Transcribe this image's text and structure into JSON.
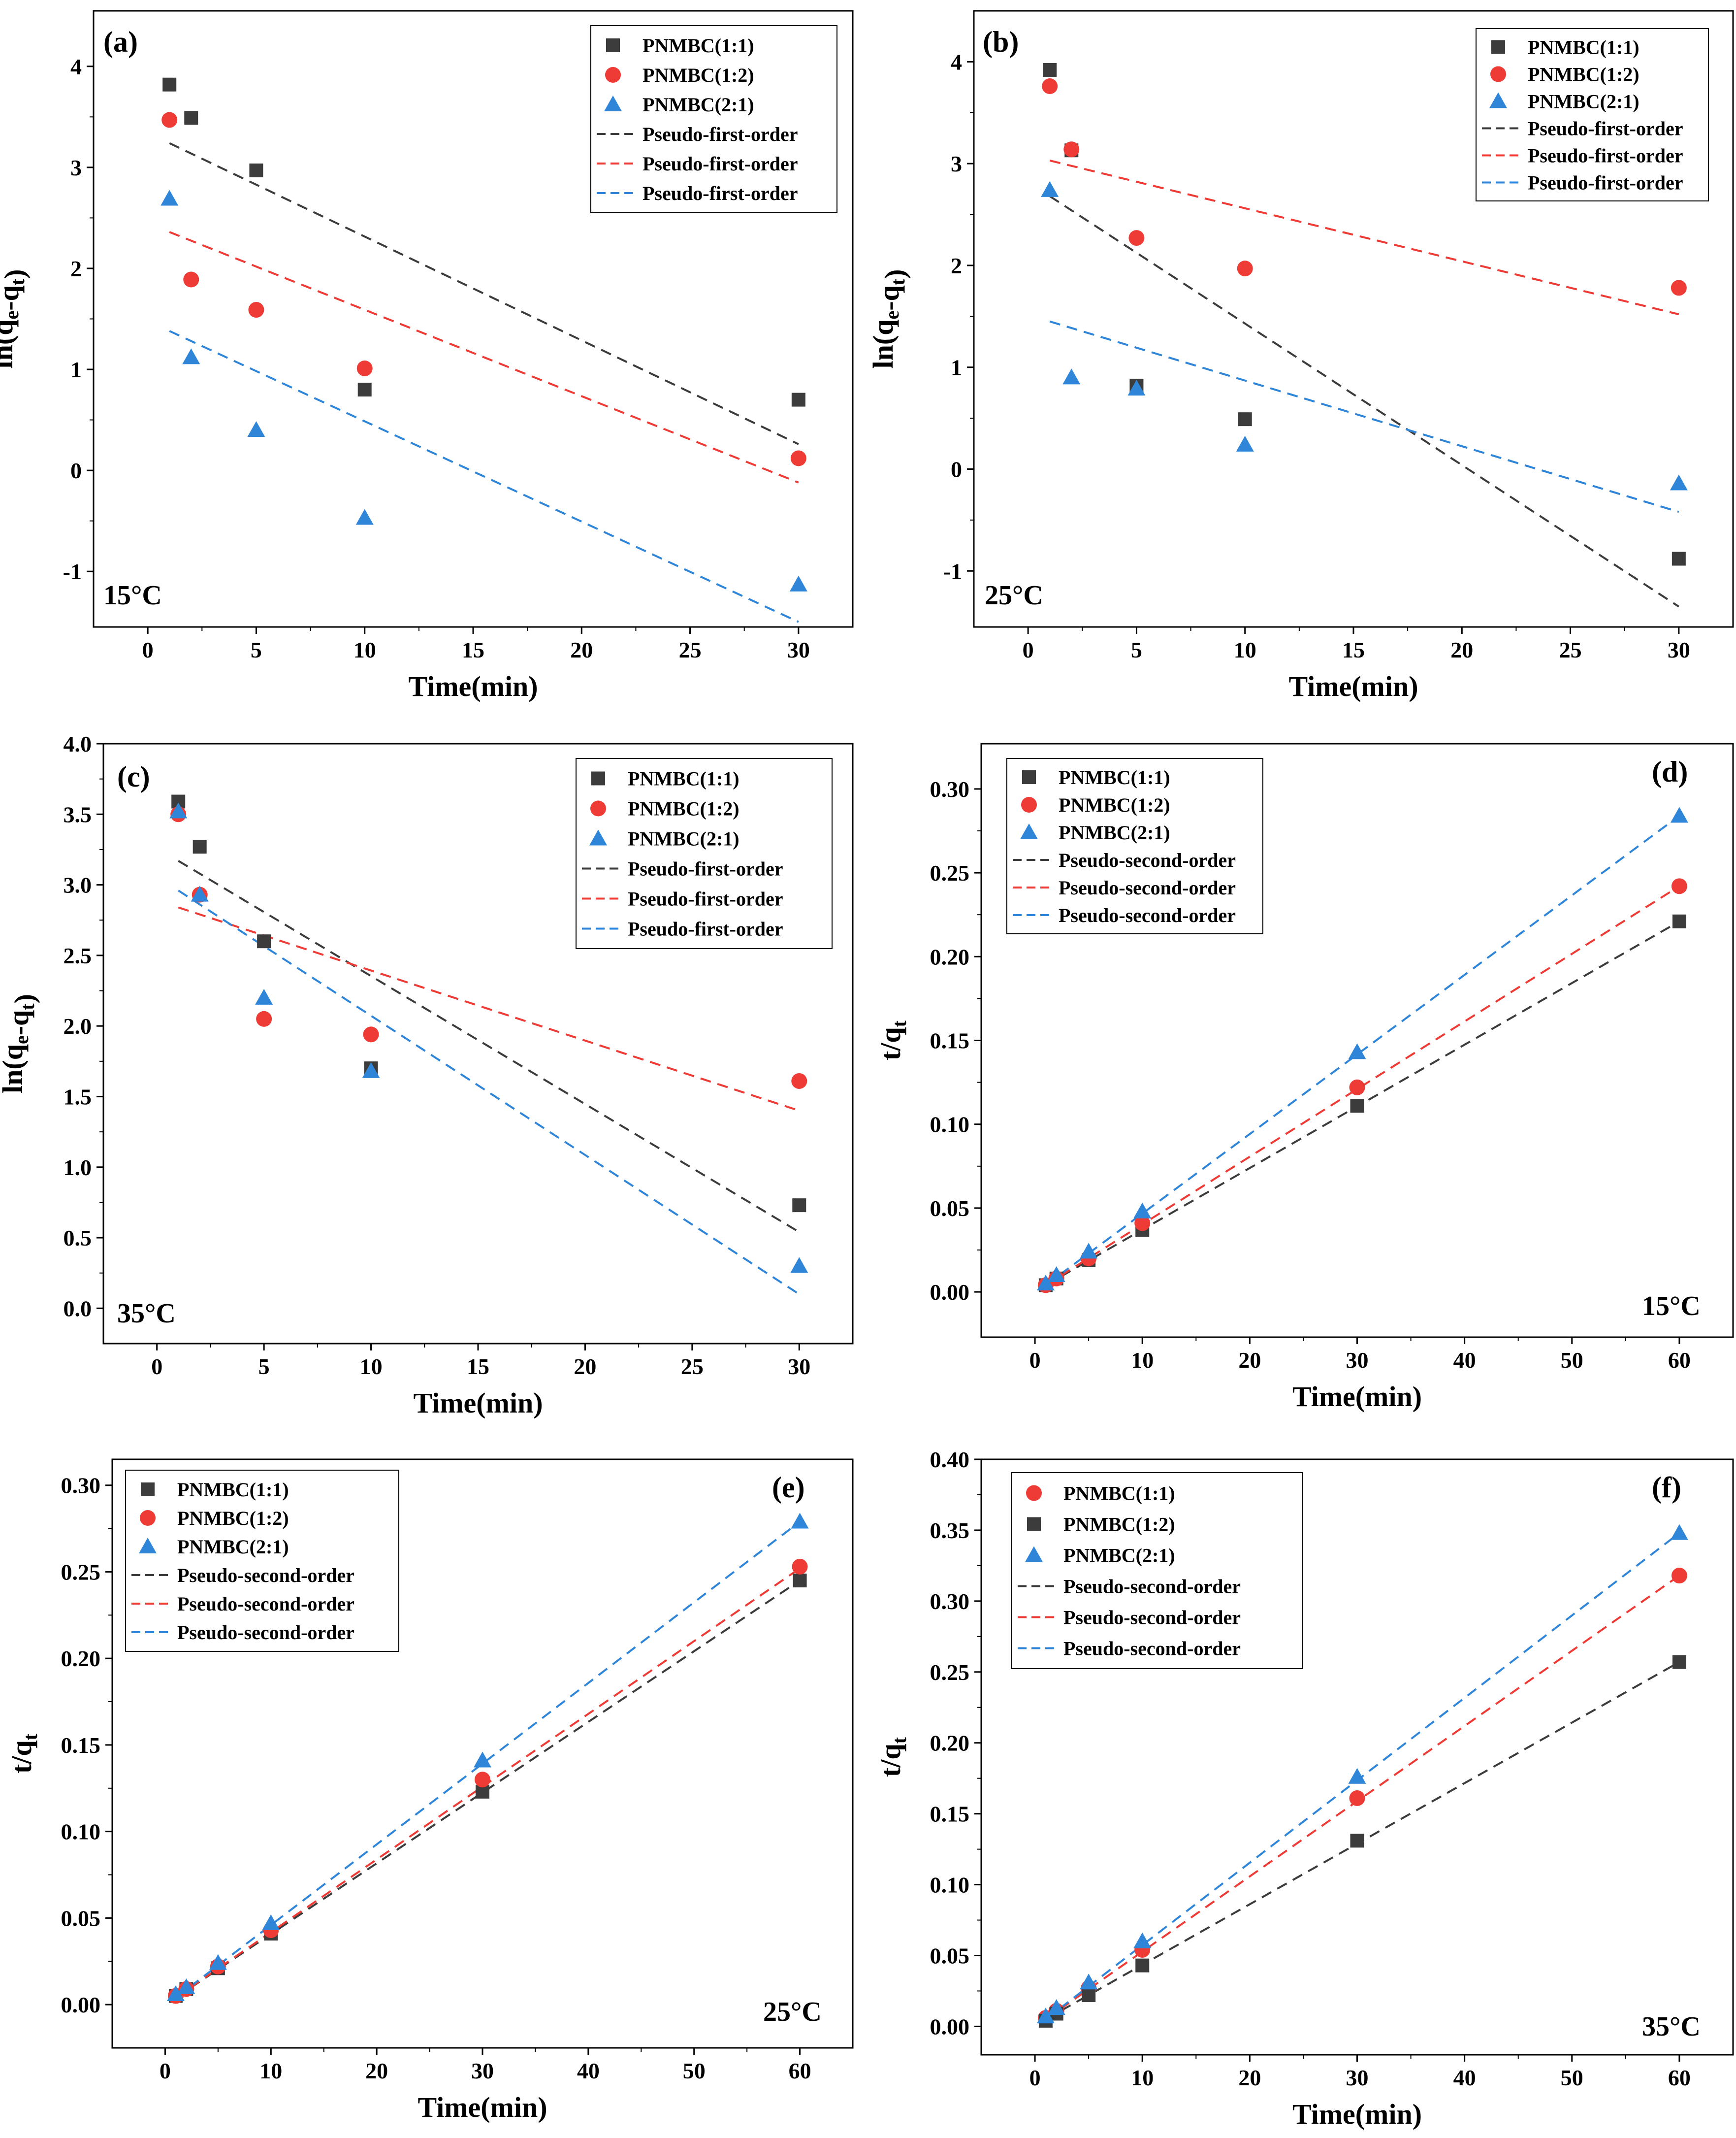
{
  "figure": {
    "colors": {
      "black": "#3c3c3c",
      "red": "#ef3b36",
      "blue": "#2f86d9"
    }
  },
  "chart_data": [
    {
      "panel": "(a)",
      "type": "scatter",
      "temperature": "15°C",
      "xlabel": "Time(min)",
      "ylabel": "ln(q_e-q_t)",
      "xlim": [
        -2.5,
        32.5
      ],
      "ylim": [
        -1.55,
        4.55
      ],
      "xticks": [
        0,
        5,
        10,
        15,
        20,
        25,
        30
      ],
      "yticks": [
        -1,
        0,
        1,
        2,
        3,
        4
      ],
      "ytick_labels": [
        "-1",
        "0",
        "1",
        "2",
        "3",
        "4"
      ],
      "legend_position": "top-right",
      "x": [
        1,
        2,
        5,
        10,
        30
      ],
      "series": [
        {
          "name": "PNMBC(1:1)",
          "marker": "square",
          "color": "black",
          "values": [
            3.82,
            3.49,
            2.97,
            0.8,
            0.7
          ]
        },
        {
          "name": "PNMBC(1:2)",
          "marker": "circle",
          "color": "red",
          "values": [
            3.47,
            1.89,
            1.59,
            1.01,
            0.12
          ]
        },
        {
          "name": "PNMBC(2:1)",
          "marker": "triangle",
          "color": "blue",
          "values": [
            2.69,
            1.12,
            0.4,
            -0.47,
            -1.13
          ]
        }
      ],
      "fits": [
        {
          "name": "Pseudo-first-order",
          "color": "black",
          "x": [
            1,
            30
          ],
          "y": [
            3.24,
            0.26
          ]
        },
        {
          "name": "Pseudo-first-order",
          "color": "red",
          "x": [
            1,
            30
          ],
          "y": [
            2.36,
            -0.12
          ]
        },
        {
          "name": "Pseudo-first-order",
          "color": "blue",
          "x": [
            1,
            30
          ],
          "y": [
            1.38,
            -1.5
          ]
        }
      ]
    },
    {
      "panel": "(b)",
      "type": "scatter",
      "temperature": "25°C",
      "xlabel": "Time(min)",
      "ylabel": "ln(q_e-q_t)",
      "xlim": [
        -2.5,
        32.5
      ],
      "ylim": [
        -1.55,
        4.5
      ],
      "xticks": [
        0,
        5,
        10,
        15,
        20,
        25,
        30
      ],
      "yticks": [
        -1,
        0,
        1,
        2,
        3,
        4
      ],
      "ytick_labels": [
        "-1",
        "0",
        "1",
        "2",
        "3",
        "4"
      ],
      "legend_position": "top-right",
      "x": [
        1,
        2,
        5,
        10,
        30
      ],
      "series": [
        {
          "name": "PNMBC(1:1)",
          "marker": "square",
          "color": "black",
          "values": [
            3.92,
            3.13,
            0.82,
            0.49,
            -0.88
          ]
        },
        {
          "name": "PNMBC(1:2)",
          "marker": "circle",
          "color": "red",
          "values": [
            3.76,
            3.14,
            2.27,
            1.97,
            1.78
          ]
        },
        {
          "name": "PNMBC(2:1)",
          "marker": "triangle",
          "color": "blue",
          "values": [
            2.74,
            0.9,
            0.79,
            0.24,
            -0.14
          ]
        }
      ],
      "fits": [
        {
          "name": "Pseudo-first-order",
          "color": "black",
          "x": [
            1,
            30
          ],
          "y": [
            2.68,
            -1.35
          ]
        },
        {
          "name": "Pseudo-first-order",
          "color": "red",
          "x": [
            1,
            30
          ],
          "y": [
            3.03,
            1.52
          ]
        },
        {
          "name": "Pseudo-first-order",
          "color": "blue",
          "x": [
            1,
            30
          ],
          "y": [
            1.45,
            -0.42
          ]
        }
      ]
    },
    {
      "panel": "(c)",
      "type": "scatter",
      "temperature": "35°C",
      "xlabel": "Time(min)",
      "ylabel": "ln(q_e-q_t)",
      "xlim": [
        -2.5,
        32.5
      ],
      "ylim": [
        -0.25,
        4.0
      ],
      "xticks": [
        0,
        5,
        10,
        15,
        20,
        25,
        30
      ],
      "yticks": [
        0,
        0.5,
        1,
        1.5,
        2,
        2.5,
        3,
        3.5,
        4
      ],
      "ytick_labels": [
        "0.0",
        "0.5",
        "1.0",
        "1.5",
        "2.0",
        "2.5",
        "3.0",
        "3.5",
        "4.0"
      ],
      "legend_position": "top-right",
      "x": [
        1,
        2,
        5,
        10,
        30
      ],
      "series": [
        {
          "name": "PNMBC(1:1)",
          "marker": "square",
          "color": "black",
          "values": [
            3.59,
            3.27,
            2.6,
            1.7,
            0.73
          ]
        },
        {
          "name": "PNMBC(1:2)",
          "marker": "circle",
          "color": "red",
          "values": [
            3.5,
            2.93,
            2.05,
            1.94,
            1.61
          ]
        },
        {
          "name": "PNMBC(2:1)",
          "marker": "triangle",
          "color": "blue",
          "values": [
            3.52,
            2.93,
            2.2,
            1.68,
            0.3
          ]
        }
      ],
      "fits": [
        {
          "name": "Pseudo-first-order",
          "color": "black",
          "x": [
            1,
            30
          ],
          "y": [
            3.17,
            0.54
          ]
        },
        {
          "name": "Pseudo-first-order",
          "color": "red",
          "x": [
            1,
            30
          ],
          "y": [
            2.84,
            1.4
          ]
        },
        {
          "name": "Pseudo-first-order",
          "color": "blue",
          "x": [
            1,
            30
          ],
          "y": [
            2.96,
            0.1
          ]
        }
      ]
    },
    {
      "panel": "(d)",
      "type": "scatter",
      "temperature": "15°C",
      "xlabel": "Time(min)",
      "ylabel": "t/q_t",
      "xlim": [
        -5,
        65
      ],
      "ylim": [
        -0.027,
        0.327
      ],
      "xticks": [
        0,
        10,
        20,
        30,
        40,
        50,
        60
      ],
      "yticks": [
        0,
        0.05,
        0.1,
        0.15,
        0.2,
        0.25,
        0.3
      ],
      "ytick_labels": [
        "0.00",
        "0.05",
        "0.10",
        "0.15",
        "0.20",
        "0.25",
        "0.30"
      ],
      "legend_position": "top-left",
      "x": [
        1,
        2,
        5,
        10,
        30,
        60
      ],
      "series": [
        {
          "name": "PNMBC(1:1)",
          "marker": "square",
          "color": "black",
          "values": [
            0.004,
            0.008,
            0.019,
            0.037,
            0.111,
            0.221
          ]
        },
        {
          "name": "PNMBC(1:2)",
          "marker": "circle",
          "color": "red",
          "values": [
            0.004,
            0.008,
            0.02,
            0.041,
            0.122,
            0.242
          ]
        },
        {
          "name": "PNMBC(2:1)",
          "marker": "triangle",
          "color": "blue",
          "values": [
            0.005,
            0.01,
            0.024,
            0.048,
            0.143,
            0.284
          ]
        }
      ],
      "fits": [
        {
          "name": "Pseudo-second-order",
          "color": "black",
          "x": [
            1,
            60
          ],
          "y": [
            0.004,
            0.221
          ]
        },
        {
          "name": "Pseudo-second-order",
          "color": "red",
          "x": [
            1,
            60
          ],
          "y": [
            0.004,
            0.242
          ]
        },
        {
          "name": "Pseudo-second-order",
          "color": "blue",
          "x": [
            1,
            60
          ],
          "y": [
            0.004,
            0.284
          ]
        }
      ]
    },
    {
      "panel": "(e)",
      "type": "scatter",
      "temperature": "25°C",
      "xlabel": "Time(min)",
      "ylabel": "t/q_t",
      "xlim": [
        -5,
        65
      ],
      "ylim": [
        -0.025,
        0.315
      ],
      "xticks": [
        0,
        10,
        20,
        30,
        40,
        50,
        60
      ],
      "yticks": [
        0,
        0.05,
        0.1,
        0.15,
        0.2,
        0.25,
        0.3
      ],
      "ytick_labels": [
        "0.00",
        "0.05",
        "0.10",
        "0.15",
        "0.20",
        "0.25",
        "0.30"
      ],
      "legend_position": "top-left",
      "x": [
        1,
        2,
        5,
        10,
        30,
        60
      ],
      "series": [
        {
          "name": "PNMBC(1:1)",
          "marker": "square",
          "color": "black",
          "values": [
            0.005,
            0.009,
            0.021,
            0.041,
            0.123,
            0.245
          ]
        },
        {
          "name": "PNMBC(1:2)",
          "marker": "circle",
          "color": "red",
          "values": [
            0.005,
            0.009,
            0.022,
            0.043,
            0.13,
            0.253
          ]
        },
        {
          "name": "PNMBC(2:1)",
          "marker": "triangle",
          "color": "blue",
          "values": [
            0.006,
            0.01,
            0.024,
            0.047,
            0.141,
            0.279
          ]
        }
      ],
      "fits": [
        {
          "name": "Pseudo-second-order",
          "color": "black",
          "x": [
            1,
            60
          ],
          "y": [
            0.004,
            0.245
          ]
        },
        {
          "name": "Pseudo-second-order",
          "color": "red",
          "x": [
            1,
            60
          ],
          "y": [
            0.004,
            0.252
          ]
        },
        {
          "name": "Pseudo-second-order",
          "color": "blue",
          "x": [
            1,
            60
          ],
          "y": [
            0.004,
            0.279
          ]
        }
      ]
    },
    {
      "panel": "(f)",
      "type": "scatter",
      "temperature": "35°C",
      "xlabel": "Time(min)",
      "ylabel": "t/q_t",
      "xlim": [
        -5,
        65
      ],
      "ylim": [
        -0.02,
        0.4
      ],
      "xticks": [
        0,
        10,
        20,
        30,
        40,
        50,
        60
      ],
      "yticks": [
        0,
        0.05,
        0.1,
        0.15,
        0.2,
        0.25,
        0.3,
        0.35,
        0.4
      ],
      "ytick_labels": [
        "0.00",
        "0.05",
        "0.10",
        "0.15",
        "0.20",
        "0.25",
        "0.30",
        "0.35",
        "0.40"
      ],
      "legend_position": "top-left",
      "x": [
        1,
        2,
        5,
        10,
        30,
        60
      ],
      "series": [
        {
          "name": "PNMBC(1:1)",
          "marker": "circle",
          "color": "red",
          "values": [
            0.006,
            0.011,
            0.027,
            0.054,
            0.161,
            0.318
          ]
        },
        {
          "name": "PNMBC(1:2)",
          "marker": "square",
          "color": "black",
          "values": [
            0.004,
            0.009,
            0.022,
            0.043,
            0.131,
            0.257
          ]
        },
        {
          "name": "PNMBC(2:1)",
          "marker": "triangle",
          "color": "blue",
          "values": [
            0.007,
            0.013,
            0.031,
            0.06,
            0.176,
            0.348
          ]
        }
      ],
      "fits": [
        {
          "name": "Pseudo-second-order",
          "color": "black",
          "x": [
            1,
            60
          ],
          "y": [
            0.005,
            0.257
          ]
        },
        {
          "name": "Pseudo-second-order",
          "color": "red",
          "x": [
            1,
            60
          ],
          "y": [
            0.005,
            0.318
          ]
        },
        {
          "name": "Pseudo-second-order",
          "color": "blue",
          "x": [
            1,
            60
          ],
          "y": [
            0.005,
            0.348
          ]
        }
      ]
    }
  ]
}
